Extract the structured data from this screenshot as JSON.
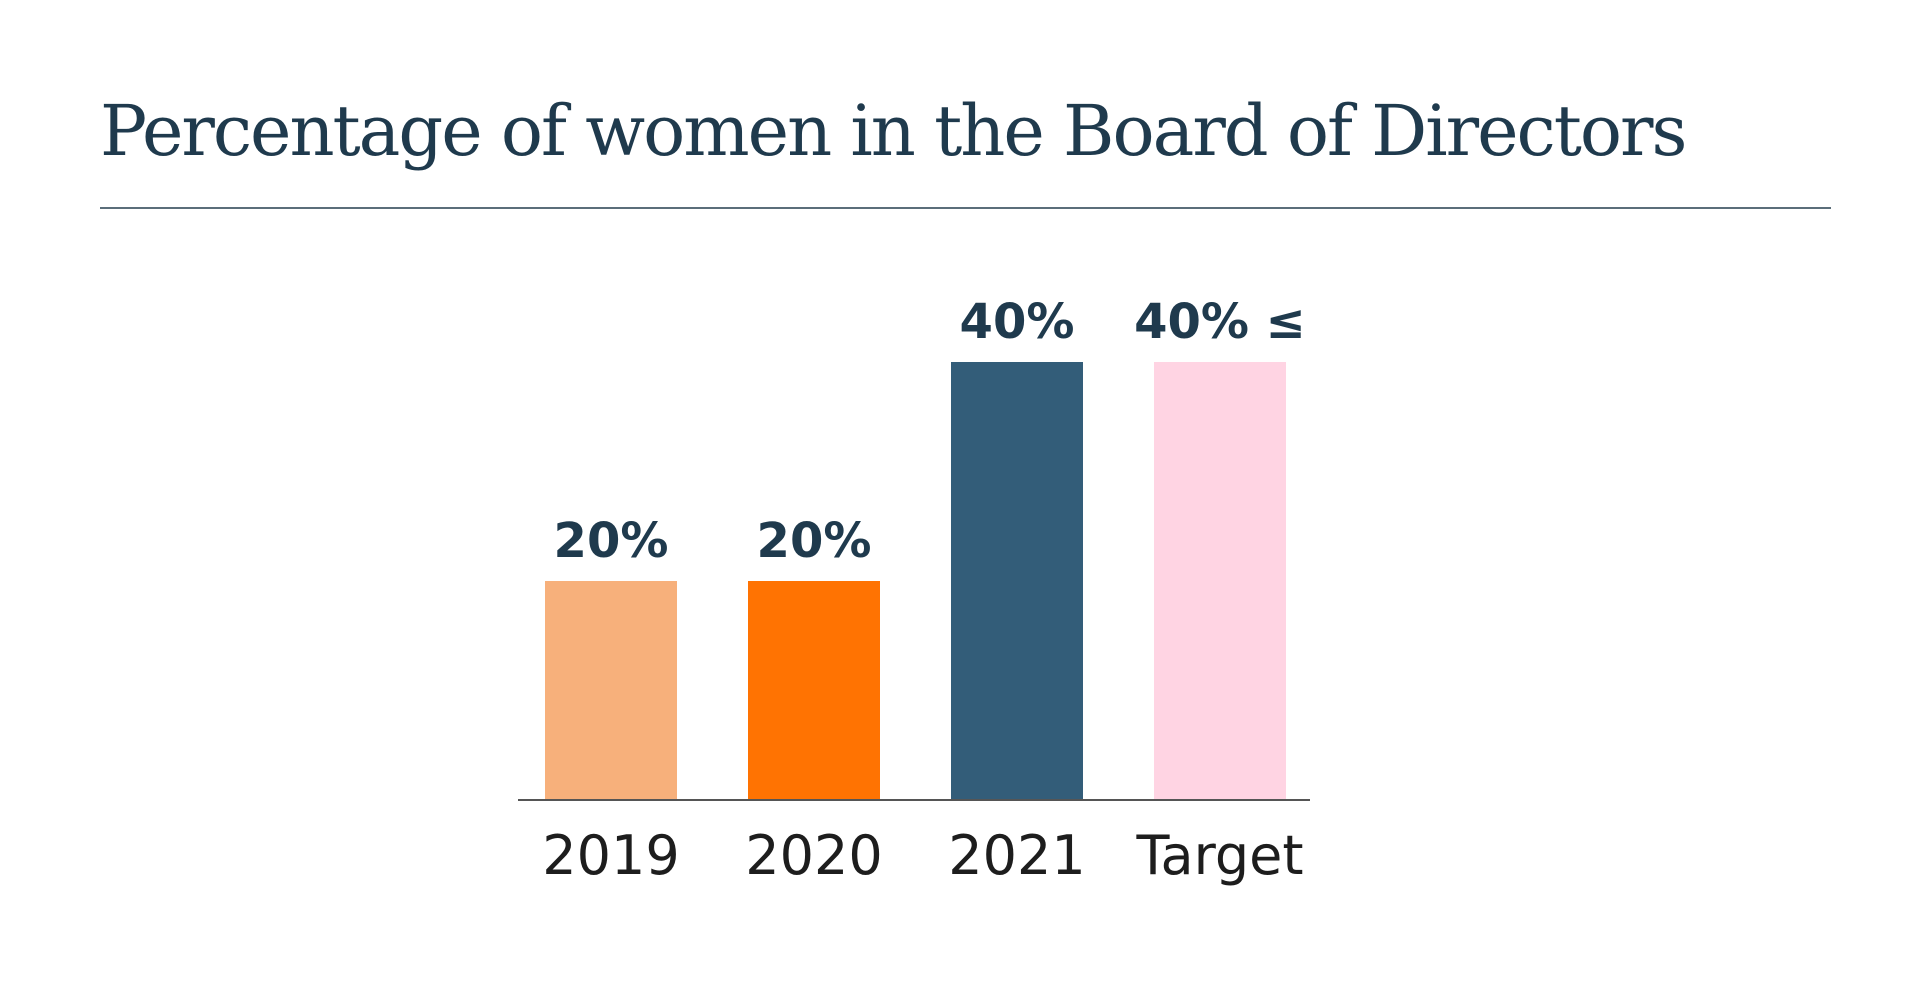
{
  "chart_data": {
    "type": "bar",
    "title": "Percentage of women in the Board of Directors",
    "categories": [
      "2019",
      "2020",
      "2021",
      "Target"
    ],
    "values": [
      20,
      20,
      40,
      40
    ],
    "data_labels": [
      "20%",
      "20%",
      "40%",
      "40% ≤"
    ],
    "colors": [
      "#f7b07b",
      "#ff7302",
      "#335d79",
      "#ffd4e3"
    ],
    "ylim": [
      0,
      40
    ],
    "grid": false,
    "legend": "none"
  }
}
